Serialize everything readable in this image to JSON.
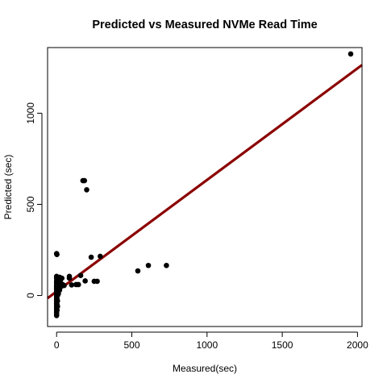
{
  "chart_data": {
    "type": "scatter",
    "title": "Predicted vs Measured NVMe Read Time",
    "xlabel": "Measured(sec)",
    "ylabel": "Predicted (sec)",
    "xlim": [
      -60,
      2030
    ],
    "ylim": [
      -170,
      1360
    ],
    "xticks": [
      0,
      500,
      1000,
      1500,
      2000
    ],
    "yticks": [
      0,
      500,
      1000
    ],
    "grid": false,
    "point_color": "#000000",
    "fit_line": {
      "color": "#8b0000",
      "intercept": 22,
      "slope": 0.612
    },
    "points": [
      [
        1955,
        1325
      ],
      [
        175,
        630
      ],
      [
        185,
        630
      ],
      [
        200,
        580
      ],
      [
        0,
        230
      ],
      [
        2,
        225
      ],
      [
        230,
        210
      ],
      [
        290,
        215
      ],
      [
        610,
        165
      ],
      [
        730,
        165
      ],
      [
        540,
        135
      ],
      [
        160,
        110
      ],
      [
        85,
        105
      ],
      [
        85,
        95
      ],
      [
        190,
        80
      ],
      [
        250,
        78
      ],
      [
        270,
        78
      ],
      [
        130,
        60
      ],
      [
        145,
        60
      ],
      [
        100,
        58
      ],
      [
        50,
        55
      ],
      [
        40,
        60
      ],
      [
        35,
        95
      ],
      [
        20,
        100
      ],
      [
        10,
        90
      ],
      [
        5,
        85
      ],
      [
        25,
        75
      ],
      [
        30,
        50
      ],
      [
        15,
        40
      ],
      [
        20,
        30
      ],
      [
        8,
        20
      ],
      [
        12,
        10
      ],
      [
        0,
        105
      ],
      [
        0,
        95
      ],
      [
        0,
        80
      ],
      [
        0,
        70
      ],
      [
        0,
        60
      ],
      [
        0,
        50
      ],
      [
        0,
        45
      ],
      [
        0,
        35
      ],
      [
        0,
        25
      ],
      [
        0,
        15
      ],
      [
        0,
        5
      ],
      [
        0,
        -5
      ],
      [
        0,
        -15
      ],
      [
        0,
        -25
      ],
      [
        0,
        -35
      ],
      [
        0,
        -45
      ],
      [
        0,
        -55
      ],
      [
        0,
        -65
      ],
      [
        0,
        -75
      ],
      [
        0,
        -85
      ],
      [
        0,
        -95
      ],
      [
        0,
        -105
      ],
      [
        0,
        -110
      ],
      [
        3,
        65
      ],
      [
        3,
        40
      ],
      [
        3,
        10
      ],
      [
        3,
        -20
      ],
      [
        3,
        -50
      ],
      [
        3,
        -80
      ],
      [
        6,
        55
      ],
      [
        6,
        30
      ],
      [
        6,
        0
      ],
      [
        6,
        -30
      ],
      [
        6,
        -60
      ]
    ]
  }
}
